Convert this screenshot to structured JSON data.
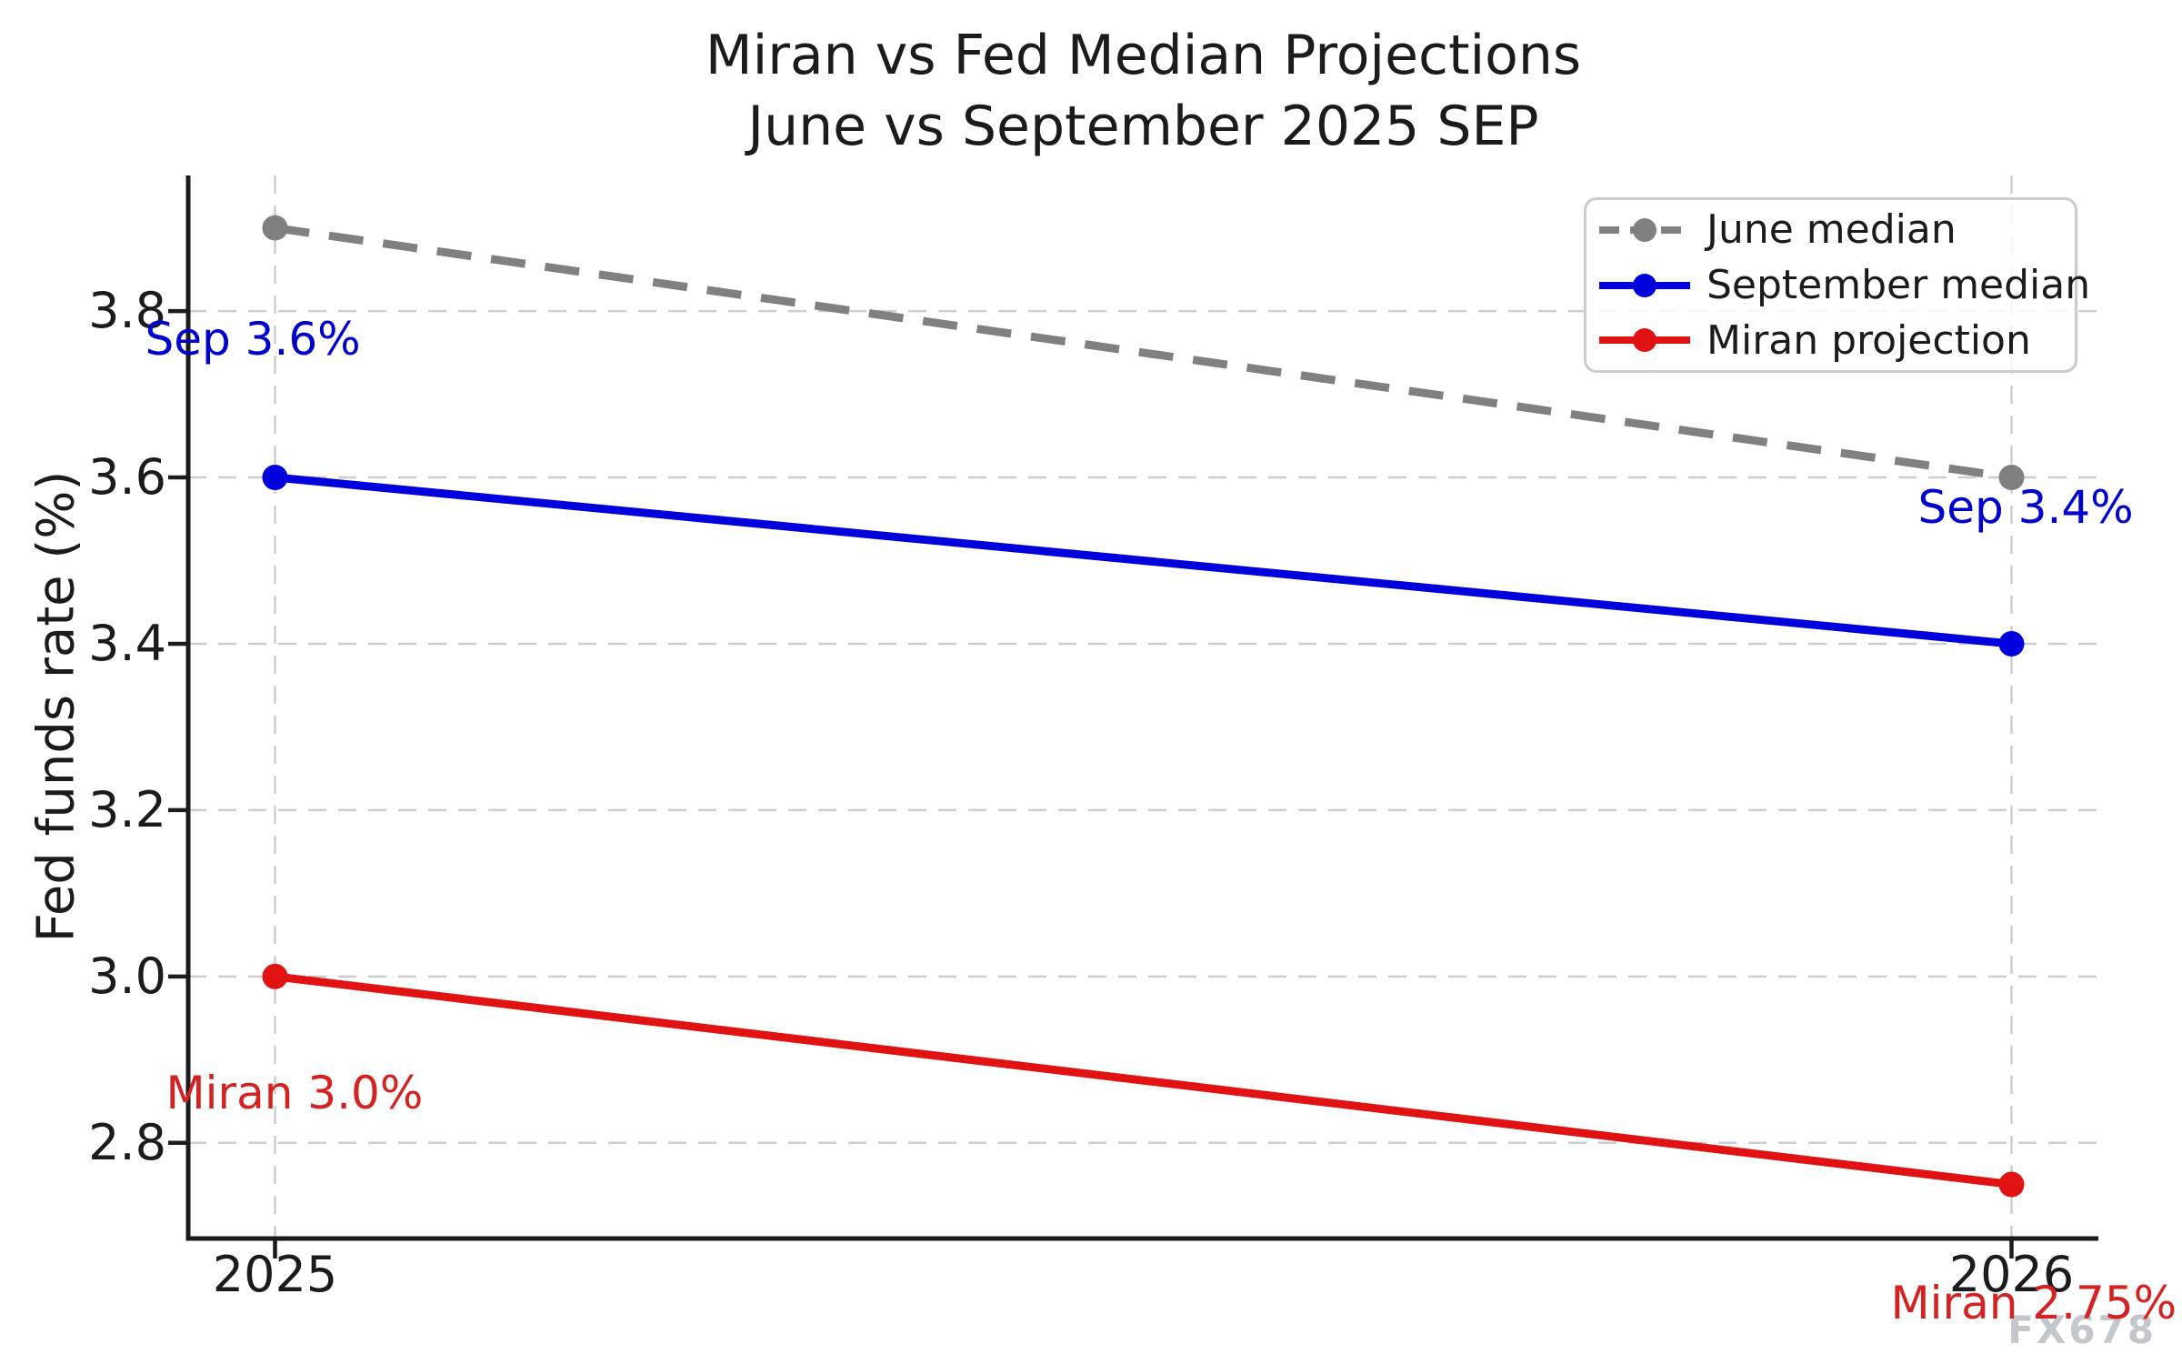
{
  "chart_data": {
    "type": "line",
    "title": "Miran vs Fed Median Projections",
    "subtitle": "June vs September 2025 SEP",
    "xlabel": "",
    "ylabel": "Fed funds rate (%)",
    "x": [
      2025,
      2026
    ],
    "x_tick_labels": [
      "2025",
      "2026"
    ],
    "y_ticks": [
      2.8,
      3.0,
      3.2,
      3.4,
      3.6,
      3.8
    ],
    "xlim": [
      2024.95,
      2026.05
    ],
    "ylim": [
      2.685,
      3.963
    ],
    "grid": true,
    "legend": {
      "position": "upper right",
      "entries": [
        "June median",
        "September median",
        "Miran projection"
      ]
    },
    "series": [
      {
        "name": "June median",
        "color": "#808080",
        "line_style": "dashed",
        "values": [
          3.9,
          3.6
        ]
      },
      {
        "name": "September median",
        "color": "#0000dd",
        "line_style": "solid",
        "values": [
          3.6,
          3.4
        ]
      },
      {
        "name": "Miran projection",
        "color": "#e01212",
        "line_style": "solid",
        "values": [
          3.0,
          2.75
        ]
      }
    ],
    "annotations": [
      {
        "text": "Sep 3.6%",
        "x": 2025,
        "y": 3.6,
        "offset": [
          -143,
          -152
        ],
        "color": "#0000cd"
      },
      {
        "text": "Sep 3.4%",
        "x": 2026,
        "y": 3.4,
        "offset": [
          -103,
          -150
        ],
        "color": "#0000cd"
      },
      {
        "text": "Miran 3.0%",
        "x": 2025,
        "y": 3.0,
        "offset": [
          -120,
          128
        ],
        "color": "#d32222"
      },
      {
        "text": "Miran 2.75%",
        "x": 2026,
        "y": 2.75,
        "offset": [
          -133,
          130
        ],
        "color": "#d32222"
      }
    ],
    "watermark": "FX678",
    "colors": {
      "text": "#1b1b1b",
      "grid": "#cdcdcd",
      "axis": "#1b1b1b"
    }
  }
}
